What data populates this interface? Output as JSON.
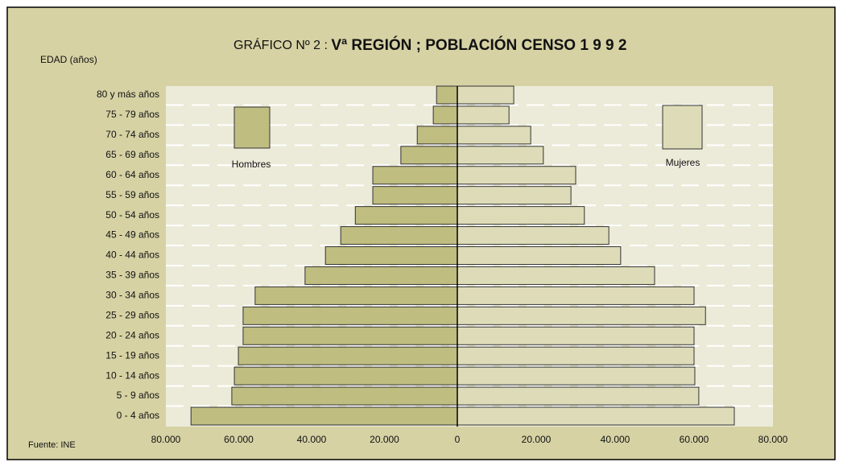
{
  "chart_data": {
    "type": "pyramid",
    "title_prefix": "GRÁFICO Nº 2 : ",
    "title": "Vª REGIÓN ;  POBLACIÓN  CENSO  1 9 9 2",
    "y_label": "EDAD (años)",
    "source": "Fuente: INE",
    "categories": [
      "80 y más años",
      "75 - 79 años",
      "70 - 74 años",
      "65 - 69 años",
      "60 - 64 años",
      "55 - 59 años",
      "50 - 54 años",
      "45 - 49 años",
      "40 - 44 años",
      "35 - 39 años",
      "30 - 34 años",
      "25 - 29 años",
      "20 - 24 años",
      "15 - 19 años",
      "10 - 14 años",
      "5 - 9 años",
      "0 - 4 años"
    ],
    "series": [
      {
        "name": "Hombres",
        "color": "#bfbd80",
        "side": "left",
        "values": [
          5700,
          6600,
          11000,
          15500,
          23200,
          23200,
          28000,
          32000,
          36200,
          41800,
          55500,
          58800,
          58800,
          60100,
          61200,
          61900,
          73100
        ]
      },
      {
        "name": "Mujeres",
        "color": "#dedcb8",
        "side": "right",
        "values": [
          14300,
          13100,
          18600,
          21800,
          30000,
          28800,
          32200,
          38400,
          41400,
          50000,
          60000,
          62900,
          60000,
          60000,
          60200,
          61200,
          70200
        ]
      }
    ],
    "xlim": [
      -80000,
      80000
    ],
    "xticks": [
      {
        "value": -80000,
        "label": "80.000"
      },
      {
        "value": -60000,
        "label": "60.000"
      },
      {
        "value": -40000,
        "label": "40.000"
      },
      {
        "value": -20000,
        "label": "20.000"
      },
      0,
      {
        "value": 20000,
        "label": "20.000"
      },
      {
        "value": 40000,
        "label": "40.000"
      },
      {
        "value": 60000,
        "label": "60.000"
      },
      {
        "value": 80000,
        "label": "80.000"
      }
    ],
    "grid": true
  }
}
